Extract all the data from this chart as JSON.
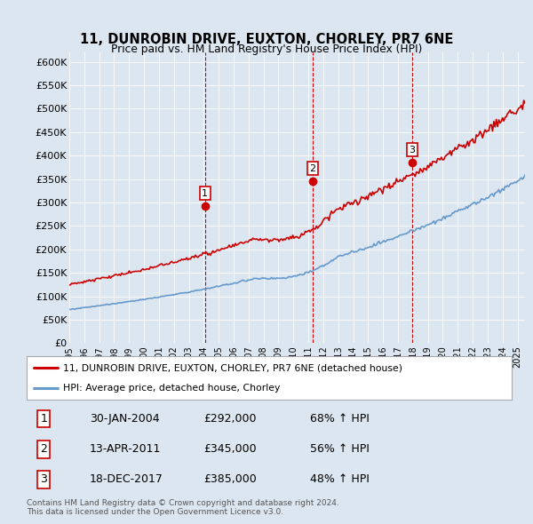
{
  "title": "11, DUNROBIN DRIVE, EUXTON, CHORLEY, PR7 6NE",
  "subtitle": "Price paid vs. HM Land Registry's House Price Index (HPI)",
  "xlim_start": 1995.0,
  "xlim_end": 2025.5,
  "ylim": [
    0,
    620000
  ],
  "yticks": [
    0,
    50000,
    100000,
    150000,
    200000,
    250000,
    300000,
    350000,
    400000,
    450000,
    500000,
    550000,
    600000
  ],
  "ytick_labels": [
    "£0",
    "£50K",
    "£100K",
    "£150K",
    "£200K",
    "£250K",
    "£300K",
    "£350K",
    "£400K",
    "£450K",
    "£500K",
    "£550K",
    "£600K"
  ],
  "background_color": "#dce6f1",
  "line_color_red": "#cc0000",
  "line_color_blue": "#6699cc",
  "vline_color": "#cc0000",
  "legend_label_red": "11, DUNROBIN DRIVE, EUXTON, CHORLEY, PR7 6NE (detached house)",
  "legend_label_blue": "HPI: Average price, detached house, Chorley",
  "sale1_x": 2004.08,
  "sale1_y": 292000,
  "sale1_label": "1",
  "sale2_x": 2011.28,
  "sale2_y": 345000,
  "sale2_label": "2",
  "sale3_x": 2017.96,
  "sale3_y": 385000,
  "sale3_label": "3",
  "table_data": [
    [
      "1",
      "30-JAN-2004",
      "£292,000",
      "68% ↑ HPI"
    ],
    [
      "2",
      "13-APR-2011",
      "£345,000",
      "56% ↑ HPI"
    ],
    [
      "3",
      "18-DEC-2017",
      "£385,000",
      "48% ↑ HPI"
    ]
  ],
  "footnote": "Contains HM Land Registry data © Crown copyright and database right 2024.\nThis data is licensed under the Open Government Licence v3.0.",
  "xtick_years": [
    1995,
    1996,
    1997,
    1998,
    1999,
    2000,
    2001,
    2002,
    2003,
    2004,
    2005,
    2006,
    2007,
    2008,
    2009,
    2010,
    2011,
    2012,
    2013,
    2014,
    2015,
    2016,
    2017,
    2018,
    2019,
    2020,
    2021,
    2022,
    2023,
    2024,
    2025
  ]
}
